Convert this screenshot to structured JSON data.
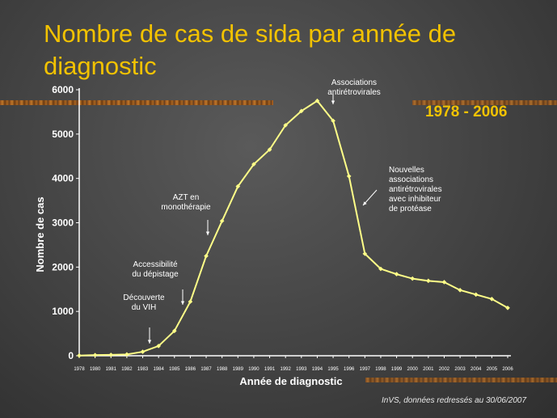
{
  "slide": {
    "title": "Nombre de cas de sida par année de diagnostic",
    "period": "1978 - 2006",
    "source": "InVS, données redressés au 30/06/2007"
  },
  "colors": {
    "title": "#f2c200",
    "line": "#ffff88",
    "axis": "#ffffff",
    "background": "#474747"
  },
  "chart_data": {
    "type": "line",
    "xlabel": "Année de diagnostic",
    "ylabel": "Nombre de cas",
    "ylim": [
      0,
      6000
    ],
    "yticks": [
      0,
      1000,
      2000,
      3000,
      4000,
      5000,
      6000
    ],
    "x": [
      1978,
      1980,
      1981,
      1982,
      1983,
      1984,
      1985,
      1986,
      1987,
      1988,
      1989,
      1990,
      1991,
      1992,
      1993,
      1994,
      1995,
      1996,
      1997,
      1998,
      1999,
      2000,
      2001,
      2002,
      2003,
      2004,
      2005,
      2006
    ],
    "series": [
      {
        "values": [
          5,
          15,
          20,
          30,
          90,
          220,
          560,
          1220,
          2250,
          3040,
          3820,
          4320,
          4650,
          5200,
          5520,
          5750,
          5300,
          4050,
          2300,
          1960,
          1840,
          1740,
          1690,
          1660,
          1480,
          1380,
          1280,
          1080
        ]
      }
    ],
    "annotations": [
      {
        "lines": [
          "Associations",
          "antirétrovirales"
        ],
        "x": 1994,
        "y": 5750
      },
      {
        "lines": [
          "Nouvelles",
          "associations",
          "antirétrovirales",
          "avec inhibiteur",
          "de protéase"
        ],
        "x": 1996,
        "y": 3500
      },
      {
        "lines": [
          "AZT en",
          "monothérapie"
        ],
        "x": 1987,
        "y": 2800
      },
      {
        "lines": [
          "Accessibilité",
          "du dépistage"
        ],
        "x": 1985.5,
        "y": 1200
      },
      {
        "lines": [
          "Découverte",
          "du VIH"
        ],
        "x": 1983,
        "y": 180
      }
    ],
    "grid": false
  }
}
